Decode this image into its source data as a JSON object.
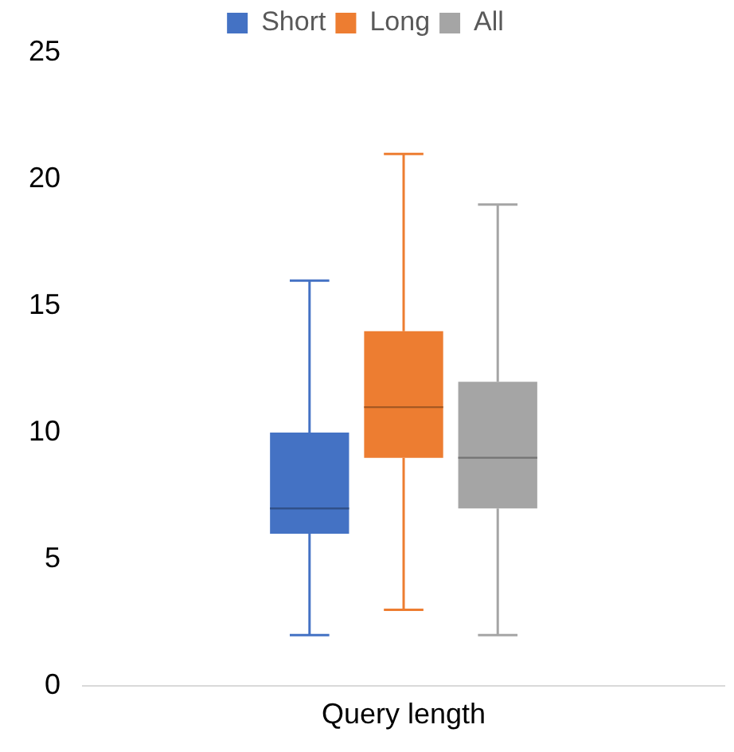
{
  "chart_data": {
    "type": "box",
    "categories": [
      "Query length"
    ],
    "ylim": [
      0,
      25
    ],
    "yticks": [
      0,
      5,
      10,
      15,
      20,
      25
    ],
    "grid": false,
    "legend": "top",
    "series": [
      {
        "name": "Short",
        "color": "#4472c4",
        "boxes": [
          {
            "low": 2,
            "q1": 6,
            "median": 7,
            "q3": 10,
            "high": 16
          }
        ]
      },
      {
        "name": "Long",
        "color": "#ed7d31",
        "boxes": [
          {
            "low": 3,
            "q1": 9,
            "median": 11,
            "q3": 14,
            "high": 21
          }
        ]
      },
      {
        "name": "All",
        "color": "#a5a5a5",
        "boxes": [
          {
            "low": 2,
            "q1": 7,
            "median": 9,
            "q3": 12,
            "high": 19
          }
        ]
      }
    ]
  }
}
